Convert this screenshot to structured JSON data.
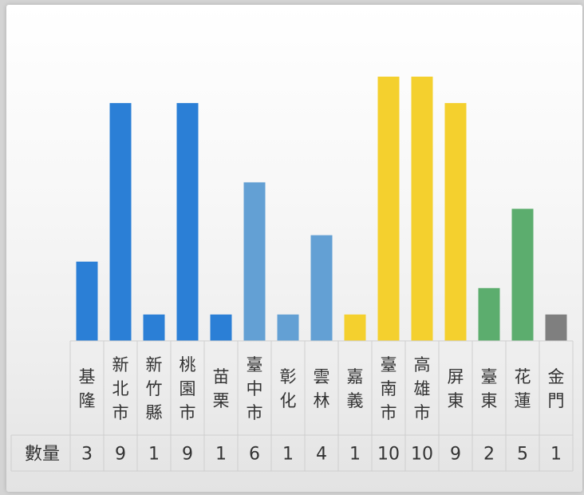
{
  "chart_data": {
    "type": "bar",
    "title": "",
    "row_header": "數量",
    "categories": [
      "基隆",
      "新北市",
      "新竹縣",
      "桃園市",
      "苗栗",
      "臺中市",
      "彰化",
      "雲林",
      "嘉義",
      "臺南市",
      "高雄市",
      "屏東",
      "臺東",
      "花蓮",
      "金門"
    ],
    "values": [
      3,
      9,
      1,
      9,
      1,
      6,
      1,
      4,
      1,
      10,
      10,
      9,
      2,
      5,
      1
    ],
    "bar_colors": [
      "#2b7fd6",
      "#2b7fd6",
      "#2b7fd6",
      "#2b7fd6",
      "#2b7fd6",
      "#63a0d4",
      "#63a0d4",
      "#63a0d4",
      "#f4d02e",
      "#f4d02e",
      "#f4d02e",
      "#f4d02e",
      "#5cad6e",
      "#5cad6e",
      "#7f7f7f"
    ],
    "ylim": [
      0,
      10
    ],
    "grid": false,
    "legend": "none",
    "data_table": true
  }
}
